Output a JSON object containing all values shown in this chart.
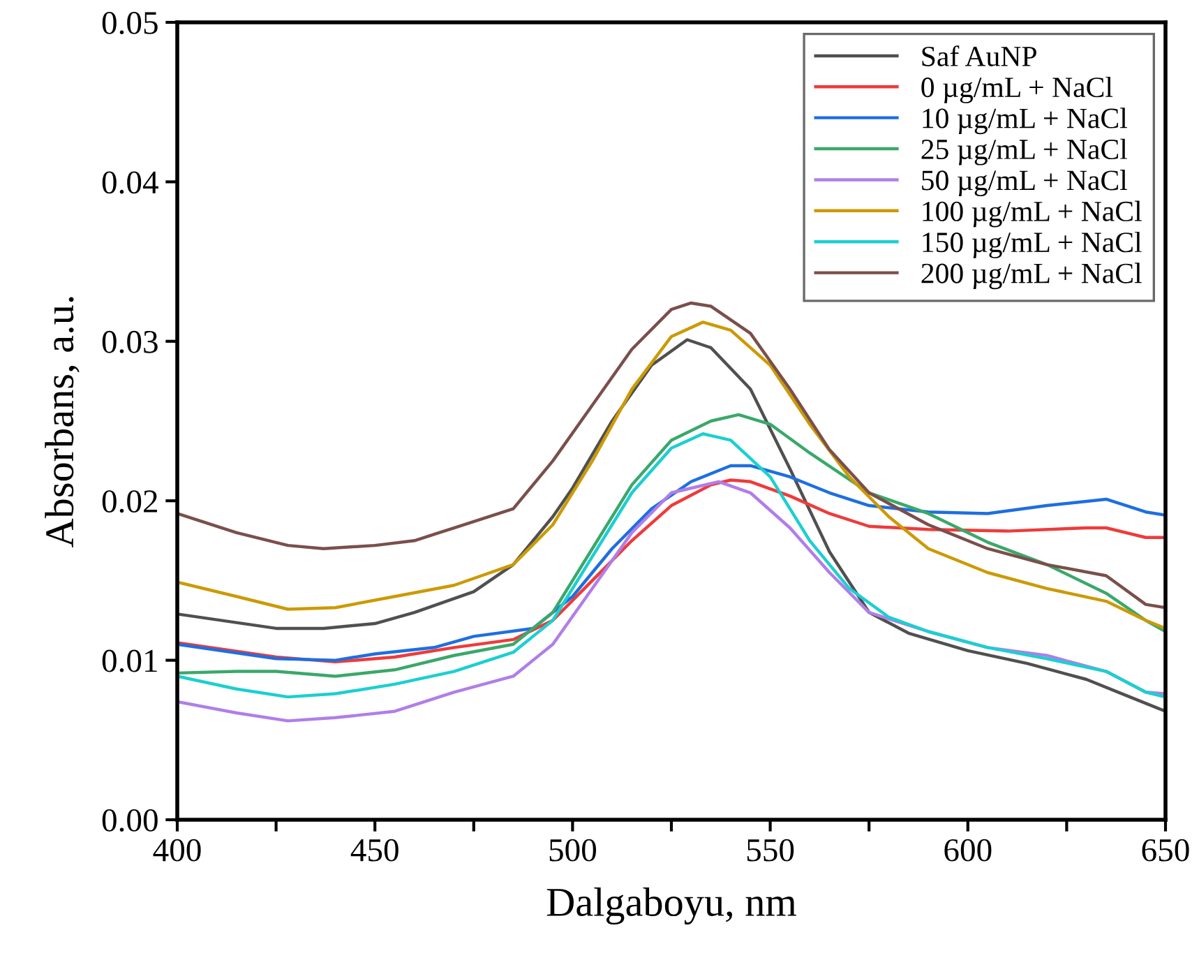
{
  "chart_data": {
    "type": "line",
    "xlabel": "Dalgaboyu, nm",
    "ylabel": "Absorbans, a.u.",
    "xlim": [
      400,
      650
    ],
    "ylim": [
      0,
      0.05
    ],
    "xticks": [
      400,
      {
        "value": 425,
        "label": null
      },
      450,
      {
        "value": 475,
        "label": null
      },
      500,
      {
        "value": 525,
        "label": null
      },
      550,
      {
        "value": 575,
        "label": null
      },
      600,
      {
        "value": 625,
        "label": null
      },
      650
    ],
    "yticks": [
      {
        "value": 0,
        "label": "0.00"
      },
      {
        "value": 0.01,
        "label": "0.01"
      },
      {
        "value": 0.02,
        "label": "0.02"
      },
      {
        "value": 0.03,
        "label": "0.03"
      },
      {
        "value": 0.04,
        "label": "0.04"
      },
      {
        "value": 0.05,
        "label": "0.05"
      }
    ],
    "grid": false,
    "legend": "top right",
    "marker": "none",
    "line_style": "solid",
    "series": [
      {
        "name": "Saf AuNP",
        "color": "#505050",
        "x": [
          400,
          425,
          437,
          450,
          460,
          475,
          485,
          495,
          500,
          510,
          520,
          529,
          535,
          545,
          555,
          565,
          575,
          585,
          600,
          615,
          630,
          640,
          650
        ],
        "values": [
          0.0129,
          0.012,
          0.012,
          0.0123,
          0.013,
          0.0143,
          0.016,
          0.019,
          0.0208,
          0.025,
          0.0285,
          0.0301,
          0.0296,
          0.027,
          0.022,
          0.0168,
          0.013,
          0.0117,
          0.0106,
          0.0098,
          0.0088,
          0.0078,
          0.0068
        ]
      },
      {
        "name": "0 µg/mL + NaCl",
        "color": "#ee3b3b",
        "x": [
          400,
          425,
          440,
          455,
          470,
          485,
          495,
          505,
          515,
          525,
          535,
          540,
          545,
          555,
          565,
          575,
          590,
          610,
          630,
          635,
          645,
          650
        ],
        "values": [
          0.0111,
          0.0102,
          0.0099,
          0.0102,
          0.0108,
          0.0113,
          0.0125,
          0.015,
          0.0175,
          0.0197,
          0.021,
          0.0213,
          0.0212,
          0.0203,
          0.0192,
          0.0184,
          0.0182,
          0.0181,
          0.0183,
          0.0183,
          0.0177,
          0.0177
        ]
      },
      {
        "name": "10 µg/mL + NaCl",
        "color": "#1e6fe0",
        "x": [
          400,
          425,
          440,
          450,
          465,
          475,
          490,
          500,
          510,
          520,
          530,
          540,
          545,
          555,
          565,
          575,
          590,
          605,
          620,
          635,
          645,
          650
        ],
        "values": [
          0.011,
          0.0101,
          0.01,
          0.0104,
          0.0108,
          0.0115,
          0.012,
          0.014,
          0.017,
          0.0195,
          0.0212,
          0.0222,
          0.0222,
          0.0215,
          0.0205,
          0.0197,
          0.0193,
          0.0192,
          0.0197,
          0.0201,
          0.0193,
          0.0191
        ]
      },
      {
        "name": "25 µg/mL + NaCl",
        "color": "#3aa86a",
        "x": [
          400,
          415,
          425,
          440,
          455,
          470,
          485,
          495,
          505,
          515,
          525,
          535,
          542,
          550,
          560,
          575,
          590,
          605,
          620,
          635,
          645,
          650
        ],
        "values": [
          0.0092,
          0.0093,
          0.0093,
          0.009,
          0.0094,
          0.0103,
          0.011,
          0.013,
          0.017,
          0.021,
          0.0238,
          0.025,
          0.0254,
          0.0248,
          0.023,
          0.0205,
          0.0192,
          0.0174,
          0.016,
          0.0142,
          0.0125,
          0.0118
        ]
      },
      {
        "name": "50 µg/mL + NaCl",
        "color": "#b07ee8",
        "x": [
          400,
          415,
          428,
          440,
          455,
          470,
          485,
          495,
          505,
          515,
          525,
          537,
          545,
          555,
          565,
          575,
          590,
          605,
          620,
          635,
          645,
          650
        ],
        "values": [
          0.0074,
          0.0067,
          0.0062,
          0.0064,
          0.0068,
          0.008,
          0.009,
          0.011,
          0.0145,
          0.018,
          0.0205,
          0.0212,
          0.0205,
          0.0183,
          0.0155,
          0.013,
          0.0118,
          0.0108,
          0.0103,
          0.0093,
          0.008,
          0.0079
        ]
      },
      {
        "name": "100 µg/mL + NaCl",
        "color": "#cc9a06",
        "x": [
          400,
          415,
          428,
          440,
          455,
          470,
          485,
          495,
          505,
          515,
          525,
          533,
          540,
          550,
          560,
          570,
          580,
          590,
          605,
          620,
          635,
          645,
          650
        ],
        "values": [
          0.0149,
          0.014,
          0.0132,
          0.0133,
          0.014,
          0.0147,
          0.016,
          0.0185,
          0.0225,
          0.027,
          0.0303,
          0.0312,
          0.0307,
          0.0285,
          0.0248,
          0.0215,
          0.019,
          0.017,
          0.0155,
          0.0145,
          0.0137,
          0.0125,
          0.012
        ]
      },
      {
        "name": "150 µg/mL + NaCl",
        "color": "#1ccfd0",
        "x": [
          400,
          415,
          428,
          440,
          455,
          470,
          485,
          495,
          505,
          515,
          525,
          533,
          540,
          550,
          560,
          570,
          580,
          590,
          605,
          620,
          635,
          645,
          650
        ],
        "values": [
          0.009,
          0.0082,
          0.0077,
          0.0079,
          0.0085,
          0.0093,
          0.0105,
          0.0125,
          0.0165,
          0.0205,
          0.0233,
          0.0242,
          0.0238,
          0.0215,
          0.0175,
          0.0145,
          0.0127,
          0.0118,
          0.0108,
          0.0101,
          0.0093,
          0.008,
          0.0077
        ]
      },
      {
        "name": "200 µg/mL + NaCl",
        "color": "#7a4f4b",
        "x": [
          400,
          415,
          428,
          437,
          450,
          460,
          470,
          485,
          495,
          505,
          515,
          525,
          530,
          535,
          545,
          555,
          565,
          575,
          590,
          605,
          620,
          635,
          645,
          650
        ],
        "values": [
          0.0192,
          0.018,
          0.0172,
          0.017,
          0.0172,
          0.0175,
          0.0183,
          0.0195,
          0.0225,
          0.026,
          0.0295,
          0.032,
          0.0324,
          0.0322,
          0.0305,
          0.027,
          0.0232,
          0.0205,
          0.0185,
          0.017,
          0.016,
          0.0153,
          0.0135,
          0.0133
        ]
      }
    ]
  }
}
